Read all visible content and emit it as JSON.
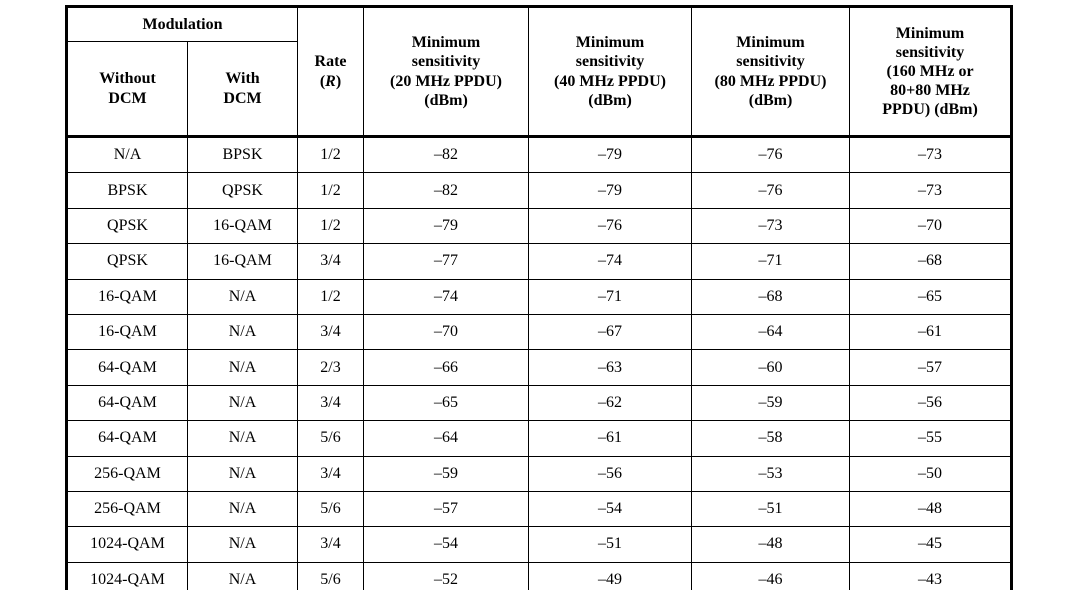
{
  "table": {
    "header": {
      "modulation_group": "Modulation",
      "without_dcm": "Without\nDCM",
      "with_dcm": "With\nDCM",
      "rate_line1": "Rate",
      "rate_open": "(",
      "rate_symbol": "R",
      "rate_close": ")",
      "s20": "Minimum\nsensitivity\n(20 MHz PPDU)\n(dBm)",
      "s40": "Minimum\nsensitivity\n(40 MHz PPDU)\n(dBm)",
      "s80": "Minimum\nsensitivity\n(80 MHz PPDU)\n(dBm)",
      "s160": "Minimum\nsensitivity\n(160 MHz or\n80+80 MHz\nPPDU) (dBm)"
    },
    "rows": [
      {
        "without_dcm": "N/A",
        "with_dcm": "BPSK",
        "rate": "1/2",
        "s20": "–82",
        "s40": "–79",
        "s80": "–76",
        "s160": "–73"
      },
      {
        "without_dcm": "BPSK",
        "with_dcm": "QPSK",
        "rate": "1/2",
        "s20": "–82",
        "s40": "–79",
        "s80": "–76",
        "s160": "–73"
      },
      {
        "without_dcm": "QPSK",
        "with_dcm": "16-QAM",
        "rate": "1/2",
        "s20": "–79",
        "s40": "–76",
        "s80": "–73",
        "s160": "–70"
      },
      {
        "without_dcm": "QPSK",
        "with_dcm": "16-QAM",
        "rate": "3/4",
        "s20": "–77",
        "s40": "–74",
        "s80": "–71",
        "s160": "–68"
      },
      {
        "without_dcm": "16-QAM",
        "with_dcm": "N/A",
        "rate": "1/2",
        "s20": "–74",
        "s40": "–71",
        "s80": "–68",
        "s160": "–65"
      },
      {
        "without_dcm": "16-QAM",
        "with_dcm": "N/A",
        "rate": "3/4",
        "s20": "–70",
        "s40": "–67",
        "s80": "–64",
        "s160": "–61"
      },
      {
        "without_dcm": "64-QAM",
        "with_dcm": "N/A",
        "rate": "2/3",
        "s20": "–66",
        "s40": "–63",
        "s80": "–60",
        "s160": "–57"
      },
      {
        "without_dcm": "64-QAM",
        "with_dcm": "N/A",
        "rate": "3/4",
        "s20": "–65",
        "s40": "–62",
        "s80": "–59",
        "s160": "–56"
      },
      {
        "without_dcm": "64-QAM",
        "with_dcm": "N/A",
        "rate": "5/6",
        "s20": "–64",
        "s40": "–61",
        "s80": "–58",
        "s160": "–55"
      },
      {
        "without_dcm": "256-QAM",
        "with_dcm": "N/A",
        "rate": "3/4",
        "s20": "–59",
        "s40": "–56",
        "s80": "–53",
        "s160": "–50"
      },
      {
        "without_dcm": "256-QAM",
        "with_dcm": "N/A",
        "rate": "5/6",
        "s20": "–57",
        "s40": "–54",
        "s80": "–51",
        "s160": "–48"
      },
      {
        "without_dcm": "1024-QAM",
        "with_dcm": "N/A",
        "rate": "3/4",
        "s20": "–54",
        "s40": "–51",
        "s80": "–48",
        "s160": "–45"
      },
      {
        "without_dcm": "1024-QAM",
        "with_dcm": "N/A",
        "rate": "5/6",
        "s20": "–52",
        "s40": "–49",
        "s80": "–46",
        "s160": "–43"
      }
    ]
  }
}
